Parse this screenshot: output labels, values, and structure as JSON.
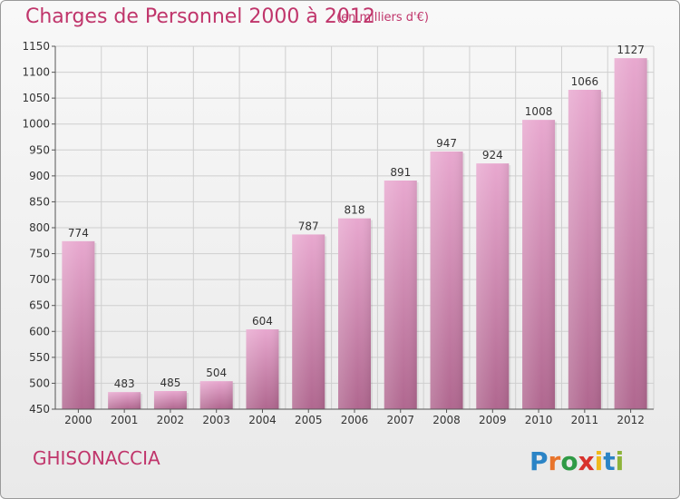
{
  "header": {
    "title": "Charges de Personnel 2000 à 2012",
    "unit": "(en milliers d'€)"
  },
  "footer": {
    "commune": "GHISONACCIA",
    "brand": "Proxiti"
  },
  "chart_data": {
    "type": "bar",
    "title": "Charges de Personnel 2000 à 2012",
    "subtitle": "(en milliers d'€)",
    "categories": [
      "2000",
      "2001",
      "2002",
      "2003",
      "2004",
      "2005",
      "2006",
      "2007",
      "2008",
      "2009",
      "2010",
      "2011",
      "2012"
    ],
    "values": [
      774,
      483,
      485,
      504,
      604,
      787,
      818,
      891,
      947,
      924,
      1008,
      1066,
      1127
    ],
    "ylim": [
      450,
      1150
    ],
    "yticks": [
      450,
      500,
      550,
      600,
      650,
      700,
      750,
      800,
      850,
      900,
      950,
      1000,
      1050,
      1100,
      1150
    ],
    "grid": true,
    "colors": {
      "bar_light": "#e8a8cf",
      "bar_dark": "#b0678f",
      "text": "#c0356b",
      "grid": "#cfcfcf"
    }
  }
}
